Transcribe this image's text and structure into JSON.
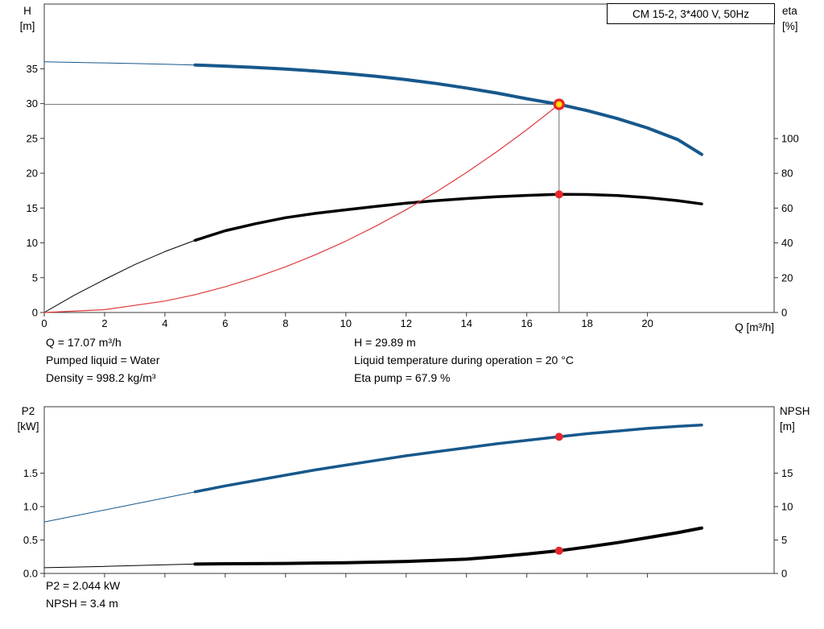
{
  "title_box": {
    "label": "CM 15-2, 3*400 V, 50Hz"
  },
  "labels": {
    "top_left_1": "H",
    "top_left_2": "[m]",
    "top_right_1": "eta",
    "top_right_2": "[%]",
    "x_axis": "Q [m³/h]",
    "bottom_left_1": "P2",
    "bottom_left_2": "[kW]",
    "bottom_right_1": "NPSH",
    "bottom_right_2": "[m]"
  },
  "info": {
    "flow": "Q = 17.07 m³/h",
    "head": "H = 29.89 m",
    "pumped_liquid": "Pumped liquid = Water",
    "liquid_temperature": "Liquid temperature during operation = 20 °C",
    "density": "Density = 998.2 kg/m³",
    "eta_pump": "Eta pump = 67.9 %",
    "p2": "P2 = 2.044 kW",
    "npsh": "NPSH = 3.4 m"
  },
  "colors": {
    "curve_blue": "#17588c",
    "curve_black": "#000000",
    "curve_red": "#e03a3a",
    "marker_red": "#e8262c",
    "marker_yellow": "#ffdf00",
    "crosshair_gray": "#6f6f6f",
    "axis_gray": "#3a3a3a"
  },
  "chart_data": [
    {
      "type": "line",
      "title": "CM 15-2, 3*400 V, 50Hz",
      "xlabel": "Q [m³/h]",
      "ylabel_left": "H [m]",
      "ylabel_right": "eta [%]",
      "xlim": [
        0,
        24.2
      ],
      "ylim_left": [
        0,
        44.3
      ],
      "ylim_right": [
        0,
        177.3
      ],
      "grid": false,
      "x_ticks": [
        {
          "v": 0,
          "t": "0"
        },
        {
          "v": 2,
          "t": "2"
        },
        {
          "v": 4,
          "t": "4"
        },
        {
          "v": 6,
          "t": "6"
        },
        {
          "v": 8,
          "t": "8"
        },
        {
          "v": 10,
          "t": "10"
        },
        {
          "v": 12,
          "t": "12"
        },
        {
          "v": 14,
          "t": "14"
        },
        {
          "v": 16,
          "t": "16"
        },
        {
          "v": 18,
          "t": "18"
        },
        {
          "v": 20,
          "t": "20"
        }
      ],
      "y_ticks_left": [
        {
          "v": 0,
          "t": "0"
        },
        {
          "v": 5,
          "t": "5"
        },
        {
          "v": 10,
          "t": "10"
        },
        {
          "v": 15,
          "t": "15"
        },
        {
          "v": 20,
          "t": "20"
        },
        {
          "v": 25,
          "t": "25"
        },
        {
          "v": 30,
          "t": "30"
        },
        {
          "v": 35,
          "t": "35"
        }
      ],
      "y_ticks_right": [
        {
          "v": 0,
          "t": "0"
        },
        {
          "v": 20,
          "t": "20"
        },
        {
          "v": 40,
          "t": "40"
        },
        {
          "v": 60,
          "t": "60"
        },
        {
          "v": 80,
          "t": "80"
        },
        {
          "v": 100,
          "t": "100"
        }
      ],
      "crosshair": {
        "x": 17.07,
        "y": 29.89
      },
      "series": [
        {
          "name": "head-curve",
          "axis": "left",
          "color": "#17588c",
          "thick_from": 5,
          "thick_width": 4,
          "points": [
            [
              0,
              36
            ],
            [
              1,
              35.92
            ],
            [
              2,
              35.84
            ],
            [
              3,
              35.75
            ],
            [
              4,
              35.65
            ],
            [
              5,
              35.54
            ],
            [
              6,
              35.38
            ],
            [
              7,
              35.2
            ],
            [
              8,
              34.97
            ],
            [
              9,
              34.68
            ],
            [
              10,
              34.33
            ],
            [
              11,
              33.92
            ],
            [
              12,
              33.44
            ],
            [
              13,
              32.88
            ],
            [
              14,
              32.24
            ],
            [
              15,
              31.52
            ],
            [
              16,
              30.7
            ],
            [
              17.07,
              29.89
            ],
            [
              18,
              29
            ],
            [
              19,
              27.85
            ],
            [
              20,
              26.5
            ],
            [
              21,
              24.85
            ],
            [
              21.8,
              22.7
            ]
          ]
        },
        {
          "name": "efficiency-curve",
          "axis": "right",
          "color": "#000000",
          "thick_from": 5,
          "thick_width": 3.5,
          "points": [
            [
              0,
              0
            ],
            [
              1,
              10
            ],
            [
              2,
              19
            ],
            [
              3,
              27.5
            ],
            [
              4,
              35
            ],
            [
              5,
              41.5
            ],
            [
              6,
              47
            ],
            [
              7,
              51
            ],
            [
              8,
              54.5
            ],
            [
              9,
              57
            ],
            [
              10,
              59
            ],
            [
              11,
              61
            ],
            [
              12,
              62.8
            ],
            [
              13,
              64.3
            ],
            [
              14,
              65.5
            ],
            [
              15,
              66.5
            ],
            [
              16,
              67.3
            ],
            [
              17.07,
              67.9
            ],
            [
              18,
              67.8
            ],
            [
              19,
              67.2
            ],
            [
              20,
              66
            ],
            [
              21,
              64.3
            ],
            [
              21.8,
              62.4
            ]
          ]
        },
        {
          "name": "duty-point-curve",
          "axis": "left",
          "color": "#e03a3a",
          "width": 1.2,
          "points": [
            [
              0,
              0
            ],
            [
              2,
              0.41
            ],
            [
              4,
              1.64
            ],
            [
              5,
              2.56
            ],
            [
              6,
              3.69
            ],
            [
              7,
              5.02
            ],
            [
              8,
              6.56
            ],
            [
              9,
              8.3
            ],
            [
              10,
              10.25
            ],
            [
              11,
              12.41
            ],
            [
              12,
              14.77
            ],
            [
              13,
              17.33
            ],
            [
              14,
              20.1
            ],
            [
              15,
              23.08
            ],
            [
              16,
              26.26
            ],
            [
              17.07,
              29.89
            ]
          ]
        }
      ],
      "markers": [
        {
          "x": 17.07,
          "y": 29.89,
          "axis": "left",
          "style": "target"
        },
        {
          "x": 17.07,
          "y": 67.9,
          "axis": "right",
          "style": "dot"
        }
      ],
      "operating_point": {
        "Q_m3h": 17.07,
        "H_m": 29.89,
        "eta_pct": 67.9
      }
    },
    {
      "type": "line",
      "title": "",
      "xlabel": "",
      "ylabel_left": "P2 [kW]",
      "ylabel_right": "NPSH [m]",
      "xlim": [
        0,
        24.2
      ],
      "ylim_left": [
        0,
        2.494
      ],
      "ylim_right": [
        0,
        24.94
      ],
      "grid": false,
      "x_ticks": [
        {
          "v": 0
        },
        {
          "v": 2
        },
        {
          "v": 4
        },
        {
          "v": 6
        },
        {
          "v": 8
        },
        {
          "v": 10
        },
        {
          "v": 12
        },
        {
          "v": 14
        },
        {
          "v": 16
        },
        {
          "v": 18
        },
        {
          "v": 20
        }
      ],
      "y_ticks_left": [
        {
          "v": 0,
          "t": "0.0"
        },
        {
          "v": 0.5,
          "t": "0.5"
        },
        {
          "v": 1,
          "t": "1.0"
        },
        {
          "v": 1.5,
          "t": "1.5"
        }
      ],
      "y_ticks_right": [
        {
          "v": 0,
          "t": "0"
        },
        {
          "v": 5,
          "t": "5"
        },
        {
          "v": 10,
          "t": "10"
        },
        {
          "v": 15,
          "t": "15"
        }
      ],
      "series": [
        {
          "name": "p2-curve",
          "axis": "left",
          "color": "#17588c",
          "thick_from": 5,
          "thick_width": 3.5,
          "points": [
            [
              0,
              0.77
            ],
            [
              1,
              0.86
            ],
            [
              2,
              0.95
            ],
            [
              3,
              1.04
            ],
            [
              4,
              1.13
            ],
            [
              5,
              1.22
            ],
            [
              6,
              1.31
            ],
            [
              7,
              1.39
            ],
            [
              8,
              1.47
            ],
            [
              9,
              1.55
            ],
            [
              10,
              1.62
            ],
            [
              11,
              1.69
            ],
            [
              12,
              1.76
            ],
            [
              13,
              1.82
            ],
            [
              14,
              1.88
            ],
            [
              15,
              1.94
            ],
            [
              16,
              1.99
            ],
            [
              17.07,
              2.044
            ],
            [
              18,
              2.09
            ],
            [
              19,
              2.13
            ],
            [
              20,
              2.17
            ],
            [
              21,
              2.2
            ],
            [
              21.8,
              2.22
            ]
          ]
        },
        {
          "name": "npsh-curve",
          "axis": "right",
          "color": "#000000",
          "thick_from": 5,
          "thick_width": 4,
          "points": [
            [
              0,
              0.85
            ],
            [
              1,
              0.95
            ],
            [
              2,
              1.05
            ],
            [
              3,
              1.18
            ],
            [
              4,
              1.3
            ],
            [
              5,
              1.4
            ],
            [
              6,
              1.45
            ],
            [
              8,
              1.5
            ],
            [
              10,
              1.6
            ],
            [
              12,
              1.8
            ],
            [
              13,
              1.95
            ],
            [
              14,
              2.15
            ],
            [
              15,
              2.5
            ],
            [
              16,
              2.9
            ],
            [
              17.07,
              3.4
            ],
            [
              18,
              3.95
            ],
            [
              19,
              4.6
            ],
            [
              20,
              5.35
            ],
            [
              21,
              6.1
            ],
            [
              21.8,
              6.8
            ]
          ]
        }
      ],
      "markers": [
        {
          "x": 17.07,
          "y": 2.044,
          "axis": "left",
          "style": "dot"
        },
        {
          "x": 17.07,
          "y": 3.4,
          "axis": "right",
          "style": "dot"
        }
      ],
      "operating_point": {
        "P2_kW": 2.044,
        "NPSH_m": 3.4
      }
    }
  ]
}
